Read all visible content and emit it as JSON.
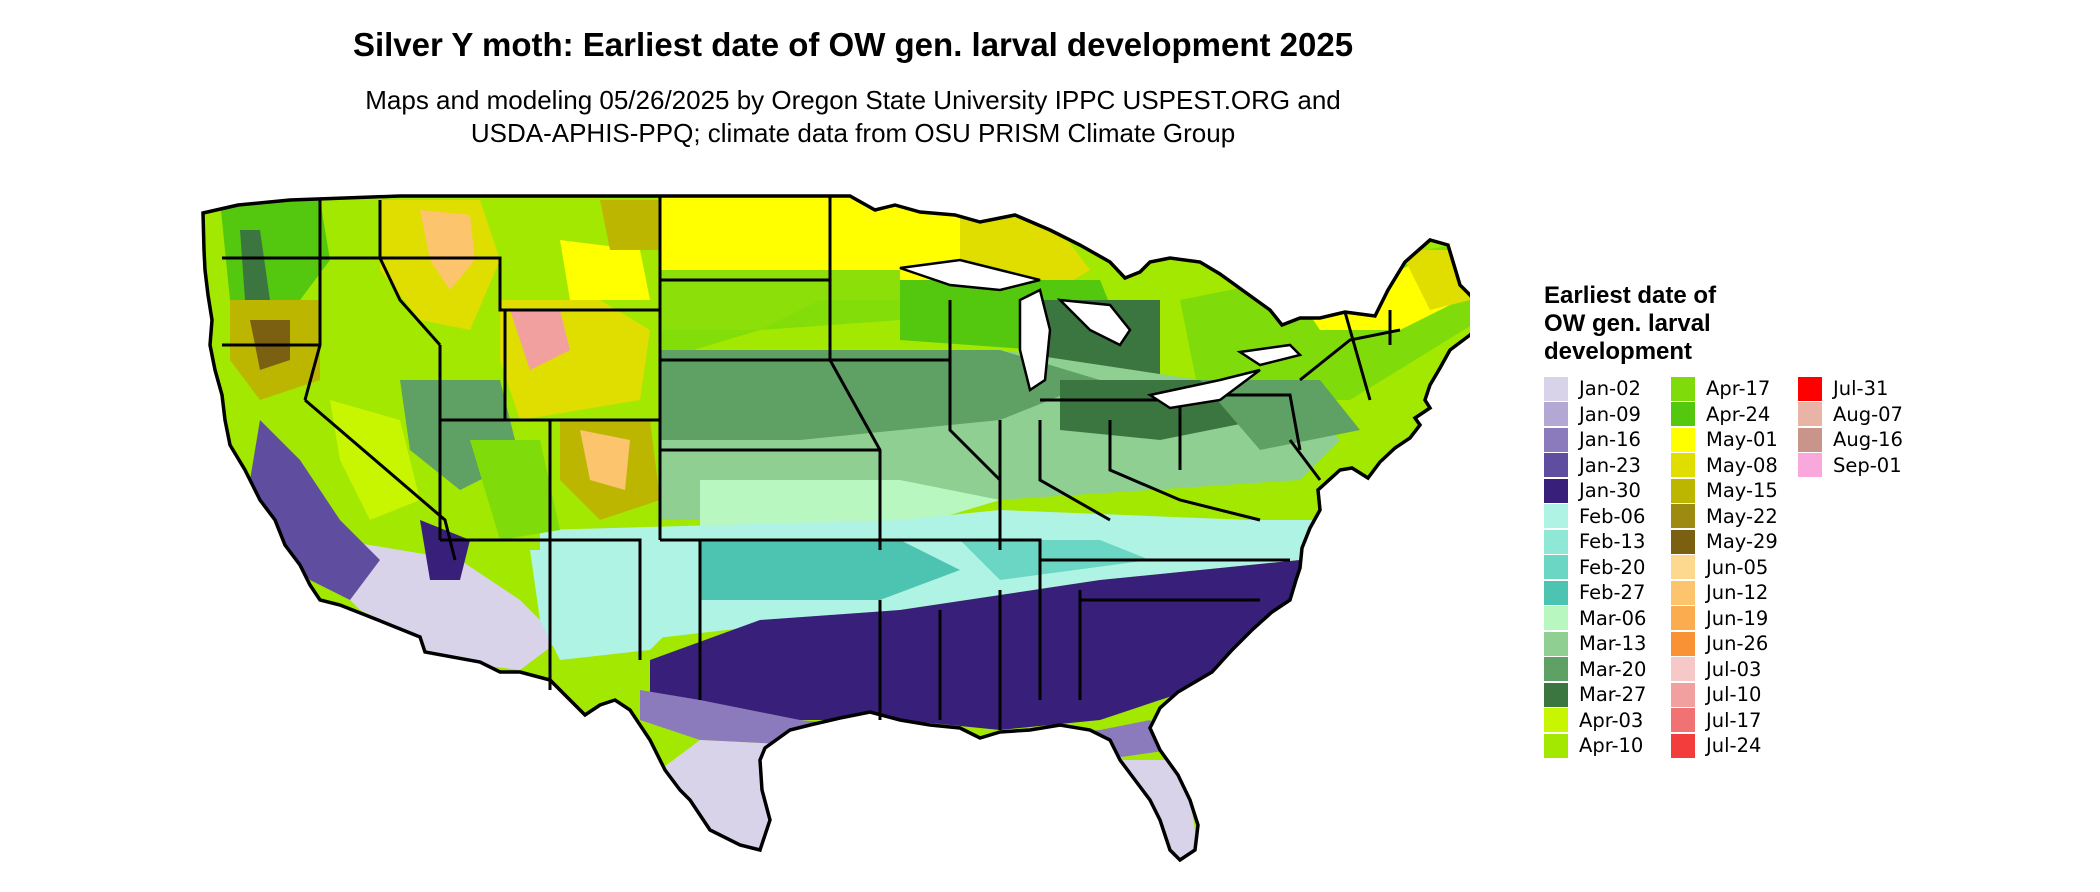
{
  "title": "Silver Y moth: Earliest date of OW gen. larval development 2025",
  "subtitle_line1": "Maps and modeling 05/26/2025 by Oregon State University IPPC USPEST.ORG and",
  "subtitle_line2": "USDA-APHIS-PPQ; climate data from OSU PRISM Climate Group",
  "legend": {
    "title": "Earliest date of OW gen. larval development",
    "columns": [
      [
        {
          "label": "Jan-02",
          "color": "#d9d3ea"
        },
        {
          "label": "Jan-09",
          "color": "#b3a7d3"
        },
        {
          "label": "Jan-16",
          "color": "#8b7bbd"
        },
        {
          "label": "Jan-23",
          "color": "#5f4e9f"
        },
        {
          "label": "Jan-30",
          "color": "#371f7a"
        },
        {
          "label": "Feb-06",
          "color": "#aef3e4"
        },
        {
          "label": "Feb-13",
          "color": "#8fe7d5"
        },
        {
          "label": "Feb-20",
          "color": "#6bd6c3"
        },
        {
          "label": "Feb-27",
          "color": "#4dc4b1"
        },
        {
          "label": "Mar-06",
          "color": "#b9f7c0"
        },
        {
          "label": "Mar-13",
          "color": "#8fd092"
        },
        {
          "label": "Mar-20",
          "color": "#5fa064"
        },
        {
          "label": "Mar-27",
          "color": "#3b7640"
        },
        {
          "label": "Apr-03",
          "color": "#c8f500"
        },
        {
          "label": "Apr-10",
          "color": "#a2e800"
        }
      ],
      [
        {
          "label": "Apr-17",
          "color": "#7fdc0a"
        },
        {
          "label": "Apr-24",
          "color": "#54c80e"
        },
        {
          "label": "May-01",
          "color": "#ffff00"
        },
        {
          "label": "May-08",
          "color": "#e0de00"
        },
        {
          "label": "May-15",
          "color": "#bdb600"
        },
        {
          "label": "May-22",
          "color": "#9d8a10"
        },
        {
          "label": "May-29",
          "color": "#7a6010"
        },
        {
          "label": "Jun-05",
          "color": "#fdd98f"
        },
        {
          "label": "Jun-12",
          "color": "#fcc46d"
        },
        {
          "label": "Jun-19",
          "color": "#fbac4f"
        },
        {
          "label": "Jun-26",
          "color": "#f99235"
        },
        {
          "label": "Jul-03",
          "color": "#f6c8c8"
        },
        {
          "label": "Jul-10",
          "color": "#f29f9f"
        },
        {
          "label": "Jul-17",
          "color": "#f07272"
        },
        {
          "label": "Jul-24",
          "color": "#f33c3c"
        }
      ],
      [
        {
          "label": "Jul-31",
          "color": "#ff0000"
        },
        {
          "label": "Aug-07",
          "color": "#e8b4a6"
        },
        {
          "label": "Aug-16",
          "color": "#c9948a"
        },
        {
          "label": "Sep-01",
          "color": "#f8a8da"
        }
      ]
    ]
  }
}
